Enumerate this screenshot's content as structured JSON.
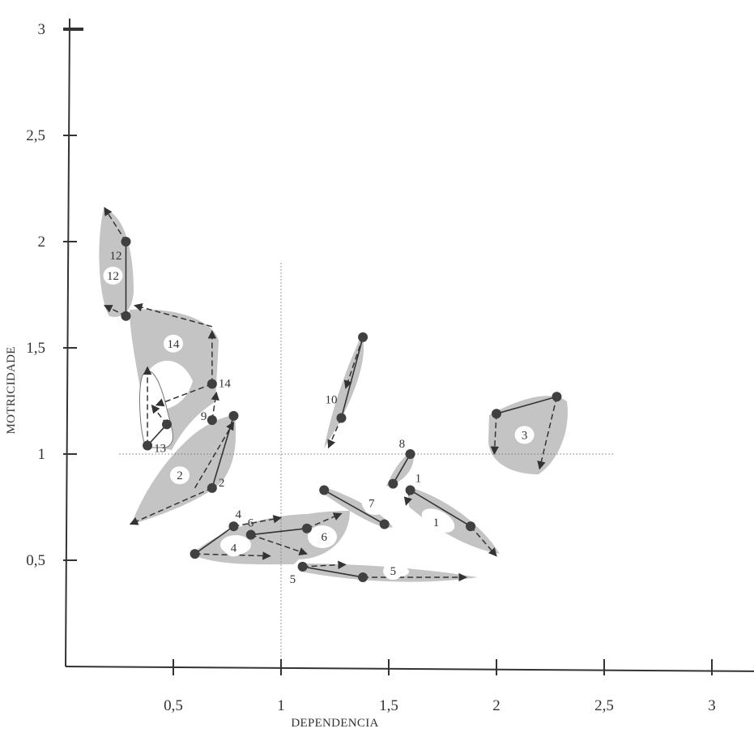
{
  "chart_data": {
    "type": "scatter",
    "xlabel": "DEPENDENCIA",
    "ylabel": "MOTRICIDADE",
    "xlim": [
      0,
      3.2
    ],
    "ylim": [
      0,
      3.05
    ],
    "x_ticks": [
      {
        "value": 0.5,
        "label": "0,5"
      },
      {
        "value": 1,
        "label": "1"
      },
      {
        "value": 1.5,
        "label": "1,5"
      },
      {
        "value": 2,
        "label": "2"
      },
      {
        "value": 2.5,
        "label": "2,5"
      },
      {
        "value": 3,
        "label": "3"
      }
    ],
    "y_ticks": [
      {
        "value": 0.5,
        "label": "0,5"
      },
      {
        "value": 1,
        "label": "1"
      },
      {
        "value": 1.5,
        "label": "1,5"
      },
      {
        "value": 2,
        "label": "2"
      },
      {
        "value": 2.5,
        "label": "2,5"
      },
      {
        "value": 3,
        "label": "3"
      }
    ],
    "reference_lines": {
      "x": 1,
      "y": 1
    },
    "colors": {
      "axis": "#333333",
      "fill": "#c4c4c4",
      "point": "#404040",
      "arrow": "#333333",
      "reference": "#777777"
    },
    "series": [
      {
        "label": "1",
        "start": [
          1.6,
          0.83
        ],
        "end": [
          1.88,
          0.66
        ],
        "arrows": [
          [
            1.6,
            0.83,
            1.58,
            0.76
          ],
          [
            1.88,
            0.66,
            2.0,
            0.52
          ]
        ],
        "blob_label_at": [
          1.72,
          0.68
        ]
      },
      {
        "label": "2",
        "start": [
          0.68,
          0.84
        ],
        "end": [
          0.78,
          1.18
        ],
        "arrows": [
          [
            0.68,
            0.84,
            0.3,
            0.67
          ],
          [
            0.6,
            0.84,
            0.78,
            1.15
          ]
        ],
        "blob_label_at": [
          0.53,
          0.9
        ]
      },
      {
        "label": "3",
        "start": [
          2.0,
          1.19
        ],
        "end": [
          2.28,
          1.27
        ],
        "arrows": [
          [
            2.0,
            1.19,
            1.99,
            1.0
          ],
          [
            2.28,
            1.27,
            2.2,
            0.93
          ]
        ],
        "blob_label_at": [
          2.13,
          1.09
        ]
      },
      {
        "label": "4",
        "start": [
          0.78,
          0.66
        ],
        "end": [
          0.6,
          0.53
        ],
        "arrows": [
          [
            0.78,
            0.66,
            1.0,
            0.7
          ],
          [
            0.6,
            0.53,
            0.95,
            0.52
          ]
        ],
        "blob_label_at": [
          0.78,
          0.56
        ]
      },
      {
        "label": "5",
        "start": [
          1.1,
          0.47
        ],
        "end": [
          1.38,
          0.42
        ],
        "arrows": [
          [
            1.1,
            0.47,
            1.3,
            0.48
          ],
          [
            1.38,
            0.42,
            1.86,
            0.42
          ]
        ],
        "blob_label_at": [
          1.52,
          0.45
        ]
      },
      {
        "label": "6",
        "start": [
          0.86,
          0.62
        ],
        "end": [
          1.12,
          0.65
        ],
        "arrows": [
          [
            0.86,
            0.62,
            1.12,
            0.53
          ],
          [
            1.12,
            0.65,
            1.28,
            0.72
          ]
        ],
        "blob_label_at": [
          1.2,
          0.61
        ]
      },
      {
        "label": "7",
        "start": [
          1.2,
          0.83
        ],
        "end": [
          1.48,
          0.67
        ],
        "arrows": [],
        "blob_label_at": [
          1.42,
          0.77
        ]
      },
      {
        "label": "8",
        "start": [
          1.6,
          1.0
        ],
        "end": [
          1.52,
          0.86
        ],
        "arrows": [],
        "blob_label_at": null
      },
      {
        "label": "9",
        "start": [
          0.68,
          1.16
        ],
        "end": [
          0.68,
          1.16
        ],
        "arrows": [
          [
            0.68,
            1.16,
            0.7,
            1.29
          ]
        ],
        "blob_label_at": null
      },
      {
        "label": "10",
        "start": [
          1.28,
          1.17
        ],
        "end": [
          1.38,
          1.55
        ],
        "arrows": [
          [
            1.38,
            1.55,
            1.3,
            1.31
          ],
          [
            1.28,
            1.17,
            1.22,
            1.03
          ]
        ],
        "blob_label_at": null
      },
      {
        "label": "12",
        "start": [
          0.28,
          2.0
        ],
        "end": [
          0.28,
          1.65
        ],
        "arrows": [
          [
            0.28,
            2.0,
            0.18,
            2.16
          ],
          [
            0.28,
            1.65,
            0.18,
            1.7
          ]
        ],
        "blob_label_at": [
          0.22,
          1.84
        ]
      },
      {
        "label": "13",
        "start": [
          0.38,
          1.04
        ],
        "end": [
          0.47,
          1.14
        ],
        "arrows": [
          [
            0.38,
            1.04,
            0.38,
            1.41
          ],
          [
            0.47,
            1.14,
            0.4,
            1.23
          ]
        ],
        "blob_label_at": null
      },
      {
        "label": "14",
        "start": [
          0.68,
          1.33
        ],
        "end": [
          0.68,
          1.33
        ],
        "arrows": [
          [
            0.68,
            1.33,
            0.42,
            1.23
          ],
          [
            0.68,
            1.33,
            0.68,
            1.58
          ],
          [
            0.68,
            1.6,
            0.32,
            1.7
          ]
        ],
        "blob_label_at": [
          0.5,
          1.52
        ]
      }
    ]
  }
}
